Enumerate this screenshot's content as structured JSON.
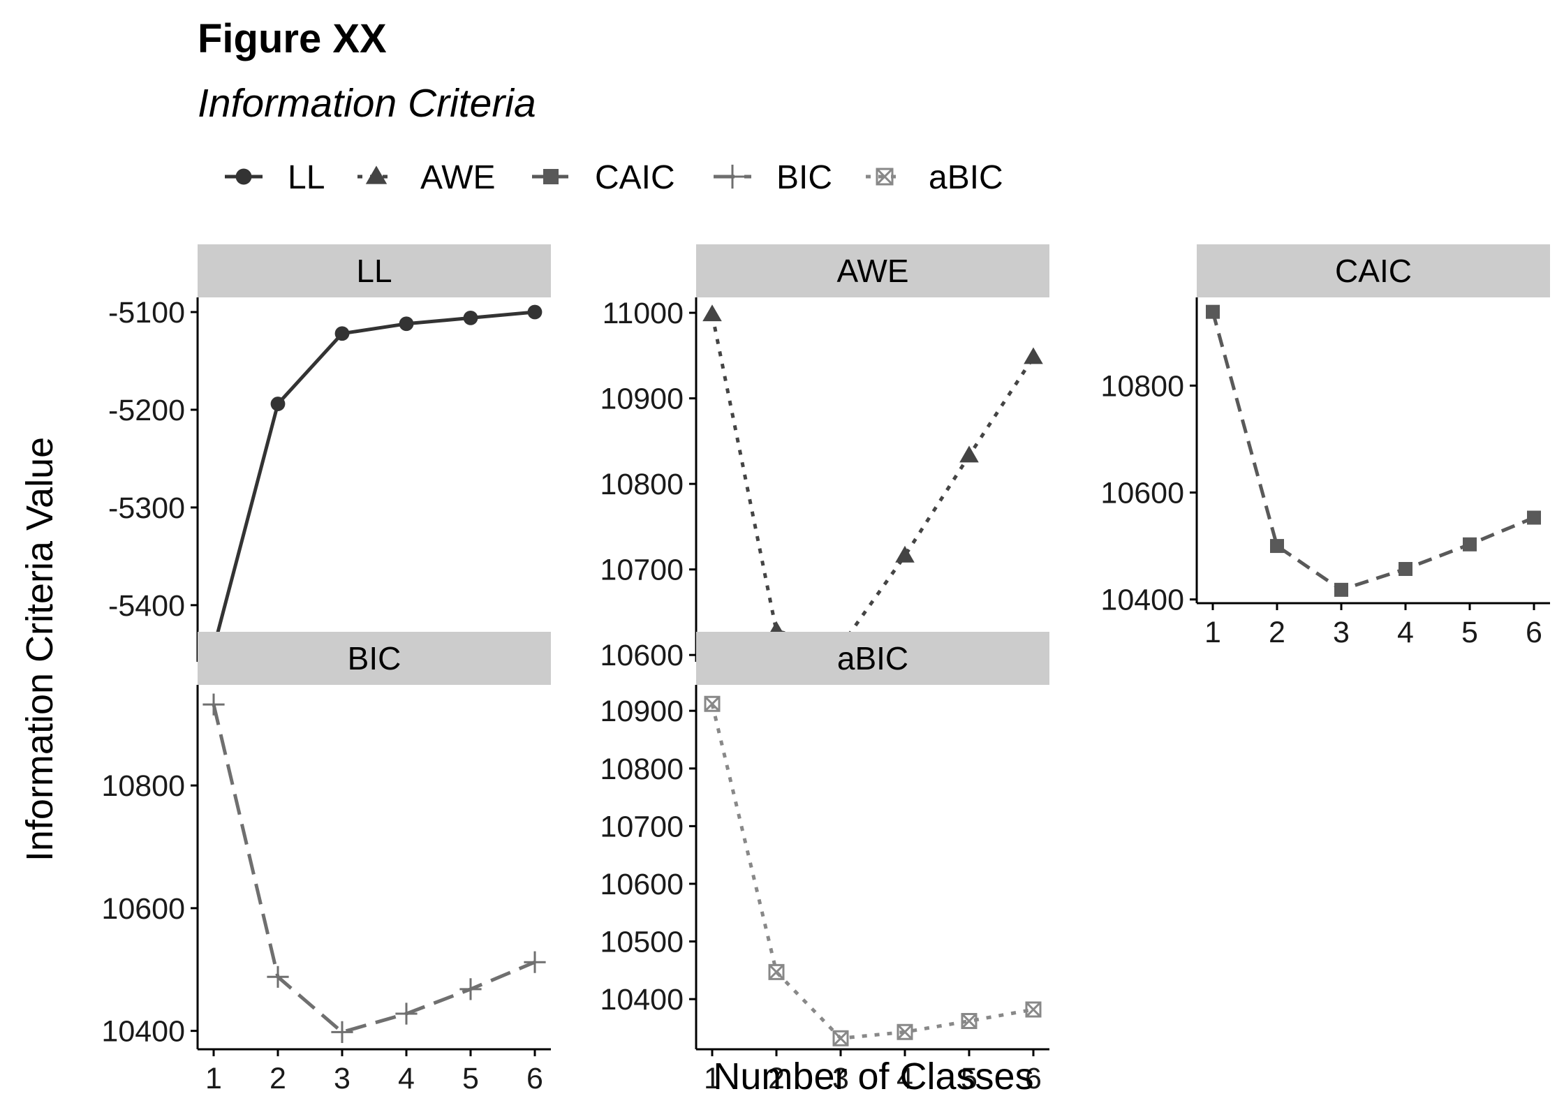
{
  "title": "Figure XX",
  "subtitle": "Information Criteria",
  "chart_data": {
    "type": "line",
    "facets": true,
    "xlabel": "Number of Classes",
    "ylabel": "Information Criteria Value",
    "x": [
      1,
      2,
      3,
      4,
      5,
      6
    ],
    "x_ticks": [
      "1",
      "2",
      "3",
      "4",
      "5",
      "6"
    ],
    "legend_position": "top",
    "grid": false,
    "series": [
      {
        "name": "LL",
        "values": [
          -5444,
          -5194,
          -5122,
          -5112,
          -5106,
          -5100
        ],
        "ylim": [
          -5458,
          -5085
        ],
        "yticks": [
          -5100,
          -5200,
          -5300,
          -5400
        ],
        "line": "solid",
        "marker": "circle",
        "color": "#333333"
      },
      {
        "name": "AWE",
        "values": [
          10998,
          10628,
          10610,
          10716,
          10833,
          10948
        ],
        "ylim": [
          10592,
          11018
        ],
        "yticks": [
          10600,
          10700,
          10800,
          10900,
          11000
        ],
        "line": "dotted",
        "marker": "triangle",
        "color": "#444444"
      },
      {
        "name": "CAIC",
        "values": [
          10938,
          10500,
          10418,
          10457,
          10503,
          10553
        ],
        "ylim": [
          10393,
          10965
        ],
        "yticks": [
          10400,
          10600,
          10800
        ],
        "line": "dashed",
        "marker": "square",
        "color": "#595959"
      },
      {
        "name": "BIC",
        "values": [
          10932,
          10488,
          10398,
          10428,
          10468,
          10512
        ],
        "ylim": [
          10370,
          10964
        ],
        "yticks": [
          10400,
          10600,
          10800
        ],
        "line": "longdash",
        "marker": "plus",
        "color": "#6f6f6f"
      },
      {
        "name": "aBIC",
        "values": [
          10912,
          10447,
          10332,
          10343,
          10362,
          10382
        ],
        "ylim": [
          10313,
          10945
        ],
        "yticks": [
          10400,
          10500,
          10600,
          10700,
          10800,
          10900
        ],
        "line": "dotted",
        "marker": "boxcross",
        "color": "#888888"
      }
    ]
  }
}
